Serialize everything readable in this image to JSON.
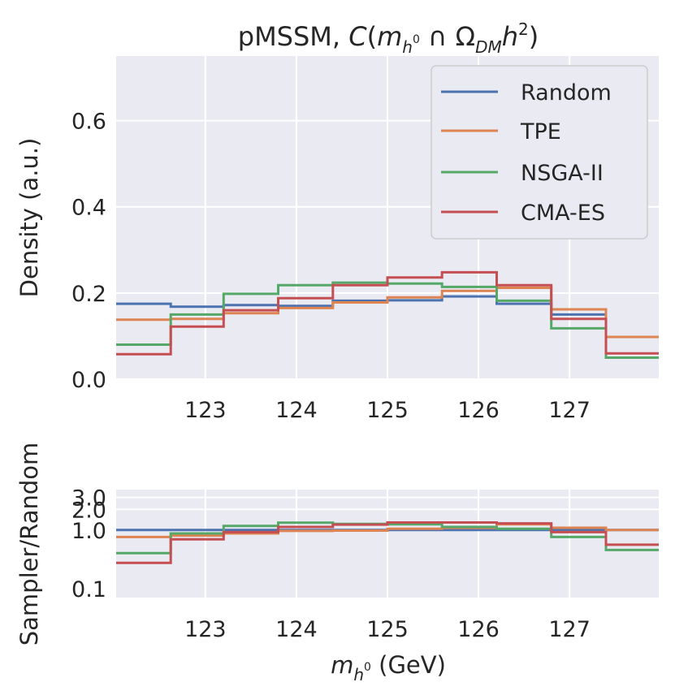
{
  "title": {
    "prefix": "pMSSM, ",
    "C": "C",
    "open": "(",
    "m": "m",
    "h": "h",
    "sup0": "0",
    "cap": " ∩ Ω",
    "DM": "DM",
    "h2": "h",
    "sq": "2",
    "close": ")"
  },
  "xlabel": {
    "m": "m",
    "h": "h",
    "sup0": "0",
    "unit": " (GeV)"
  },
  "colors": {
    "Random": "#4c72b0",
    "TPE": "#dd8452",
    "NSGA-II": "#55a868",
    "CMA-ES": "#c44e52"
  },
  "chart_data": [
    {
      "type": "histogram-step",
      "name": "density",
      "ylabel": "Density (a.u.)",
      "xlim": [
        122.02,
        127.98
      ],
      "ylim": [
        0,
        0.75
      ],
      "xticks": [
        "123",
        "124",
        "125",
        "126",
        "127"
      ],
      "yticks": [
        "0.0",
        "0.2",
        "0.4",
        "0.6"
      ],
      "bin_edges": [
        122.02,
        122.62,
        123.2,
        123.8,
        124.4,
        125.0,
        125.6,
        126.2,
        126.8,
        127.4,
        127.98
      ],
      "legend_position": "upper-right",
      "legend": [
        "Random",
        "TPE",
        "NSGA-II",
        "CMA-ES"
      ],
      "series": [
        {
          "name": "Random",
          "values": [
            0.175,
            0.168,
            0.172,
            0.17,
            0.182,
            0.183,
            0.192,
            0.175,
            0.15,
            0.098
          ]
        },
        {
          "name": "TPE",
          "values": [
            0.138,
            0.14,
            0.153,
            0.165,
            0.178,
            0.19,
            0.205,
            0.212,
            0.162,
            0.098
          ]
        },
        {
          "name": "NSGA-II",
          "values": [
            0.08,
            0.15,
            0.198,
            0.218,
            0.224,
            0.222,
            0.214,
            0.182,
            0.118,
            0.05
          ]
        },
        {
          "name": "CMA-ES",
          "values": [
            0.058,
            0.122,
            0.16,
            0.188,
            0.218,
            0.236,
            0.248,
            0.218,
            0.14,
            0.06
          ]
        }
      ]
    },
    {
      "type": "histogram-step",
      "name": "ratio",
      "ylabel": "Sampler/Random",
      "xlim": [
        122.02,
        127.98
      ],
      "ylim": [
        0.1,
        3.9
      ],
      "xticks": [
        "123",
        "124",
        "125",
        "126",
        "127"
      ],
      "yticks": [
        "3.0",
        "2.0",
        "1.0",
        "0.1"
      ],
      "bin_edges": [
        122.02,
        122.62,
        123.2,
        123.8,
        124.4,
        125.0,
        125.6,
        126.2,
        126.8,
        127.4,
        127.98
      ],
      "series": [
        {
          "name": "Random",
          "values": [
            1.0,
            1.0,
            1.0,
            1.0,
            1.0,
            1.0,
            1.0,
            1.0,
            1.0,
            1.0
          ]
        },
        {
          "name": "TPE",
          "values": [
            0.79,
            0.83,
            0.89,
            0.97,
            0.98,
            1.04,
            1.07,
            1.21,
            1.08,
            1.0
          ]
        },
        {
          "name": "NSGA-II",
          "values": [
            0.46,
            0.89,
            1.15,
            1.28,
            1.23,
            1.21,
            1.11,
            1.04,
            0.79,
            0.51
          ]
        },
        {
          "name": "CMA-ES",
          "values": [
            0.33,
            0.73,
            0.93,
            1.11,
            1.2,
            1.29,
            1.29,
            1.25,
            0.93,
            0.61
          ]
        }
      ]
    }
  ]
}
